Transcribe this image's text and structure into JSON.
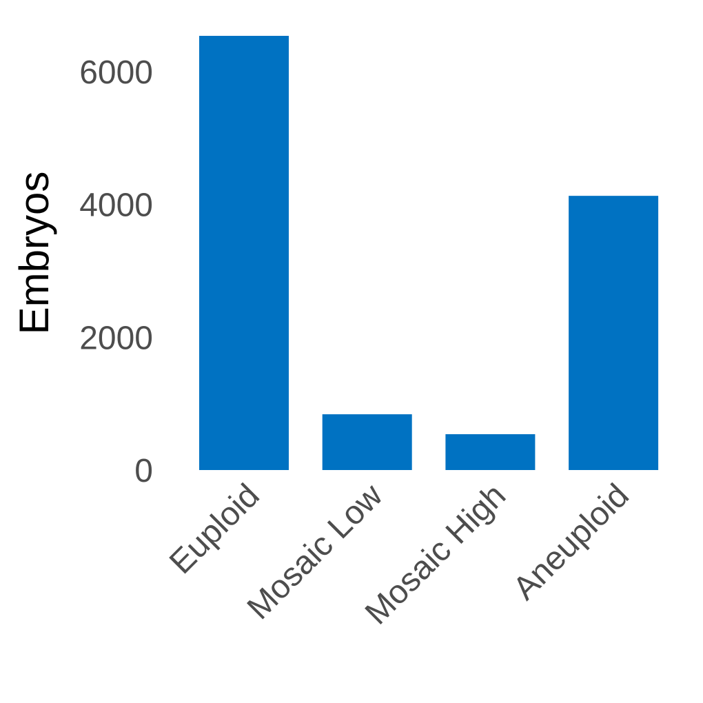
{
  "chart_data": {
    "type": "bar",
    "categories": [
      "Euploid",
      "Mosaic Low",
      "Mosaic High",
      "Aneuploid"
    ],
    "values": [
      6540,
      840,
      540,
      4130
    ],
    "title": "",
    "xlabel": "",
    "ylabel": "Embryos",
    "ylim": [
      0,
      6540
    ],
    "yticks": [
      0,
      2000,
      4000,
      6000
    ],
    "bar_color": "#0072c2",
    "grid": false,
    "legend": "none"
  }
}
